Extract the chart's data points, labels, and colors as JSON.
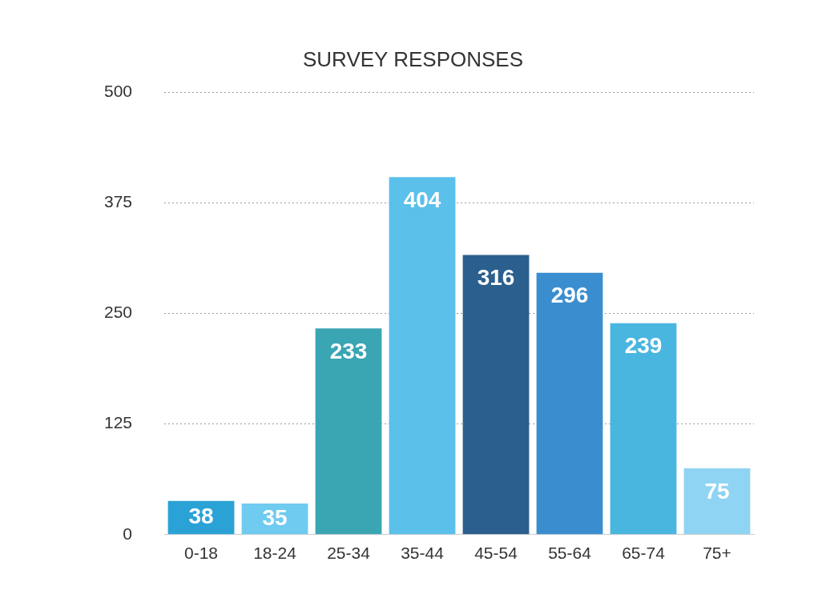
{
  "chart_data": {
    "type": "bar",
    "title": "SURVEY RESPONSES",
    "categories": [
      "0-18",
      "18-24",
      "25-34",
      "35-44",
      "45-54",
      "55-64",
      "65-74",
      "75+"
    ],
    "values": [
      38,
      35,
      233,
      404,
      316,
      296,
      239,
      75
    ],
    "colors": [
      "#2ba2d6",
      "#6fcbef",
      "#3aa5b3",
      "#5bc0ea",
      "#2b5f8e",
      "#3a8ecf",
      "#49b6e0",
      "#8fd4f3"
    ],
    "ylim": [
      0,
      500
    ],
    "yticks": [
      0,
      125,
      250,
      375,
      500
    ],
    "grid": "y",
    "data_labels": true,
    "legend": false
  }
}
